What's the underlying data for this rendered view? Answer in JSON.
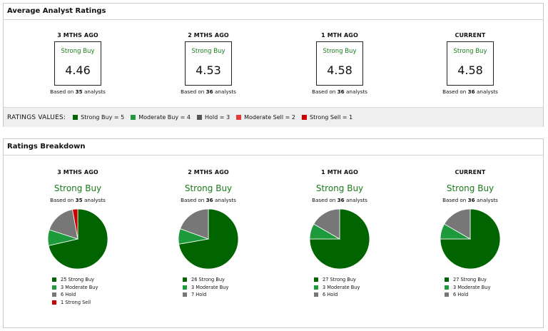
{
  "colors": {
    "strong_buy": "#006400",
    "moderate_buy": "#1c9a3c",
    "hold": "#777777",
    "moderate_sell": "#e23a3a",
    "strong_sell": "#cc0000"
  },
  "avg_panel": {
    "title": "Average Analyst Ratings",
    "periods": [
      {
        "label": "3 MTHS AGO",
        "rating": "Strong Buy",
        "value": "4.46",
        "based_pre": "Based on",
        "count": "35",
        "based_post": "analysts"
      },
      {
        "label": "2 MTHS AGO",
        "rating": "Strong Buy",
        "value": "4.53",
        "based_pre": "Based on",
        "count": "36",
        "based_post": "analysts"
      },
      {
        "label": "1 MTH AGO",
        "rating": "Strong Buy",
        "value": "4.58",
        "based_pre": "Based on",
        "count": "36",
        "based_post": "analysts"
      },
      {
        "label": "CURRENT",
        "rating": "Strong Buy",
        "value": "4.58",
        "based_pre": "Based on",
        "count": "36",
        "based_post": "analysts"
      }
    ],
    "values_title": "RATINGS VALUES:",
    "values": [
      {
        "label": "Strong Buy = 5",
        "color": "#006400"
      },
      {
        "label": "Moderate Buy = 4",
        "color": "#1c9a3c"
      },
      {
        "label": "Hold = 3",
        "color": "#555555"
      },
      {
        "label": "Moderate Sell = 2",
        "color": "#e23a3a"
      },
      {
        "label": "Strong Sell = 1",
        "color": "#cc0000"
      }
    ]
  },
  "breakdown_panel": {
    "title": "Ratings Breakdown",
    "periods": [
      {
        "label": "3 MTHS AGO",
        "rating": "Strong Buy",
        "based_pre": "Based on",
        "count": "35",
        "based_post": "analysts",
        "slices": [
          {
            "name": "Strong Buy",
            "value": 25,
            "color": "#006400",
            "text": "25 Strong Buy"
          },
          {
            "name": "Moderate Buy",
            "value": 3,
            "color": "#1c9a3c",
            "text": "3 Moderate Buy"
          },
          {
            "name": "Hold",
            "value": 6,
            "color": "#777777",
            "text": "6 Hold"
          },
          {
            "name": "Strong Sell",
            "value": 1,
            "color": "#cc0000",
            "text": "1 Strong Sell"
          }
        ]
      },
      {
        "label": "2 MTHS AGO",
        "rating": "Strong Buy",
        "based_pre": "Based on",
        "count": "36",
        "based_post": "analysts",
        "slices": [
          {
            "name": "Strong Buy",
            "value": 26,
            "color": "#006400",
            "text": "26 Strong Buy"
          },
          {
            "name": "Moderate Buy",
            "value": 3,
            "color": "#1c9a3c",
            "text": "3 Moderate Buy"
          },
          {
            "name": "Hold",
            "value": 7,
            "color": "#777777",
            "text": "7 Hold"
          }
        ]
      },
      {
        "label": "1 MTH AGO",
        "rating": "Strong Buy",
        "based_pre": "Based on",
        "count": "36",
        "based_post": "analysts",
        "slices": [
          {
            "name": "Strong Buy",
            "value": 27,
            "color": "#006400",
            "text": "27 Strong Buy"
          },
          {
            "name": "Moderate Buy",
            "value": 3,
            "color": "#1c9a3c",
            "text": "3 Moderate Buy"
          },
          {
            "name": "Hold",
            "value": 6,
            "color": "#777777",
            "text": "6 Hold"
          }
        ]
      },
      {
        "label": "CURRENT",
        "rating": "Strong Buy",
        "based_pre": "Based on",
        "count": "36",
        "based_post": "analysts",
        "slices": [
          {
            "name": "Strong Buy",
            "value": 27,
            "color": "#006400",
            "text": "27 Strong Buy"
          },
          {
            "name": "Moderate Buy",
            "value": 3,
            "color": "#1c9a3c",
            "text": "3 Moderate Buy"
          },
          {
            "name": "Hold",
            "value": 6,
            "color": "#777777",
            "text": "6 Hold"
          }
        ]
      }
    ]
  }
}
